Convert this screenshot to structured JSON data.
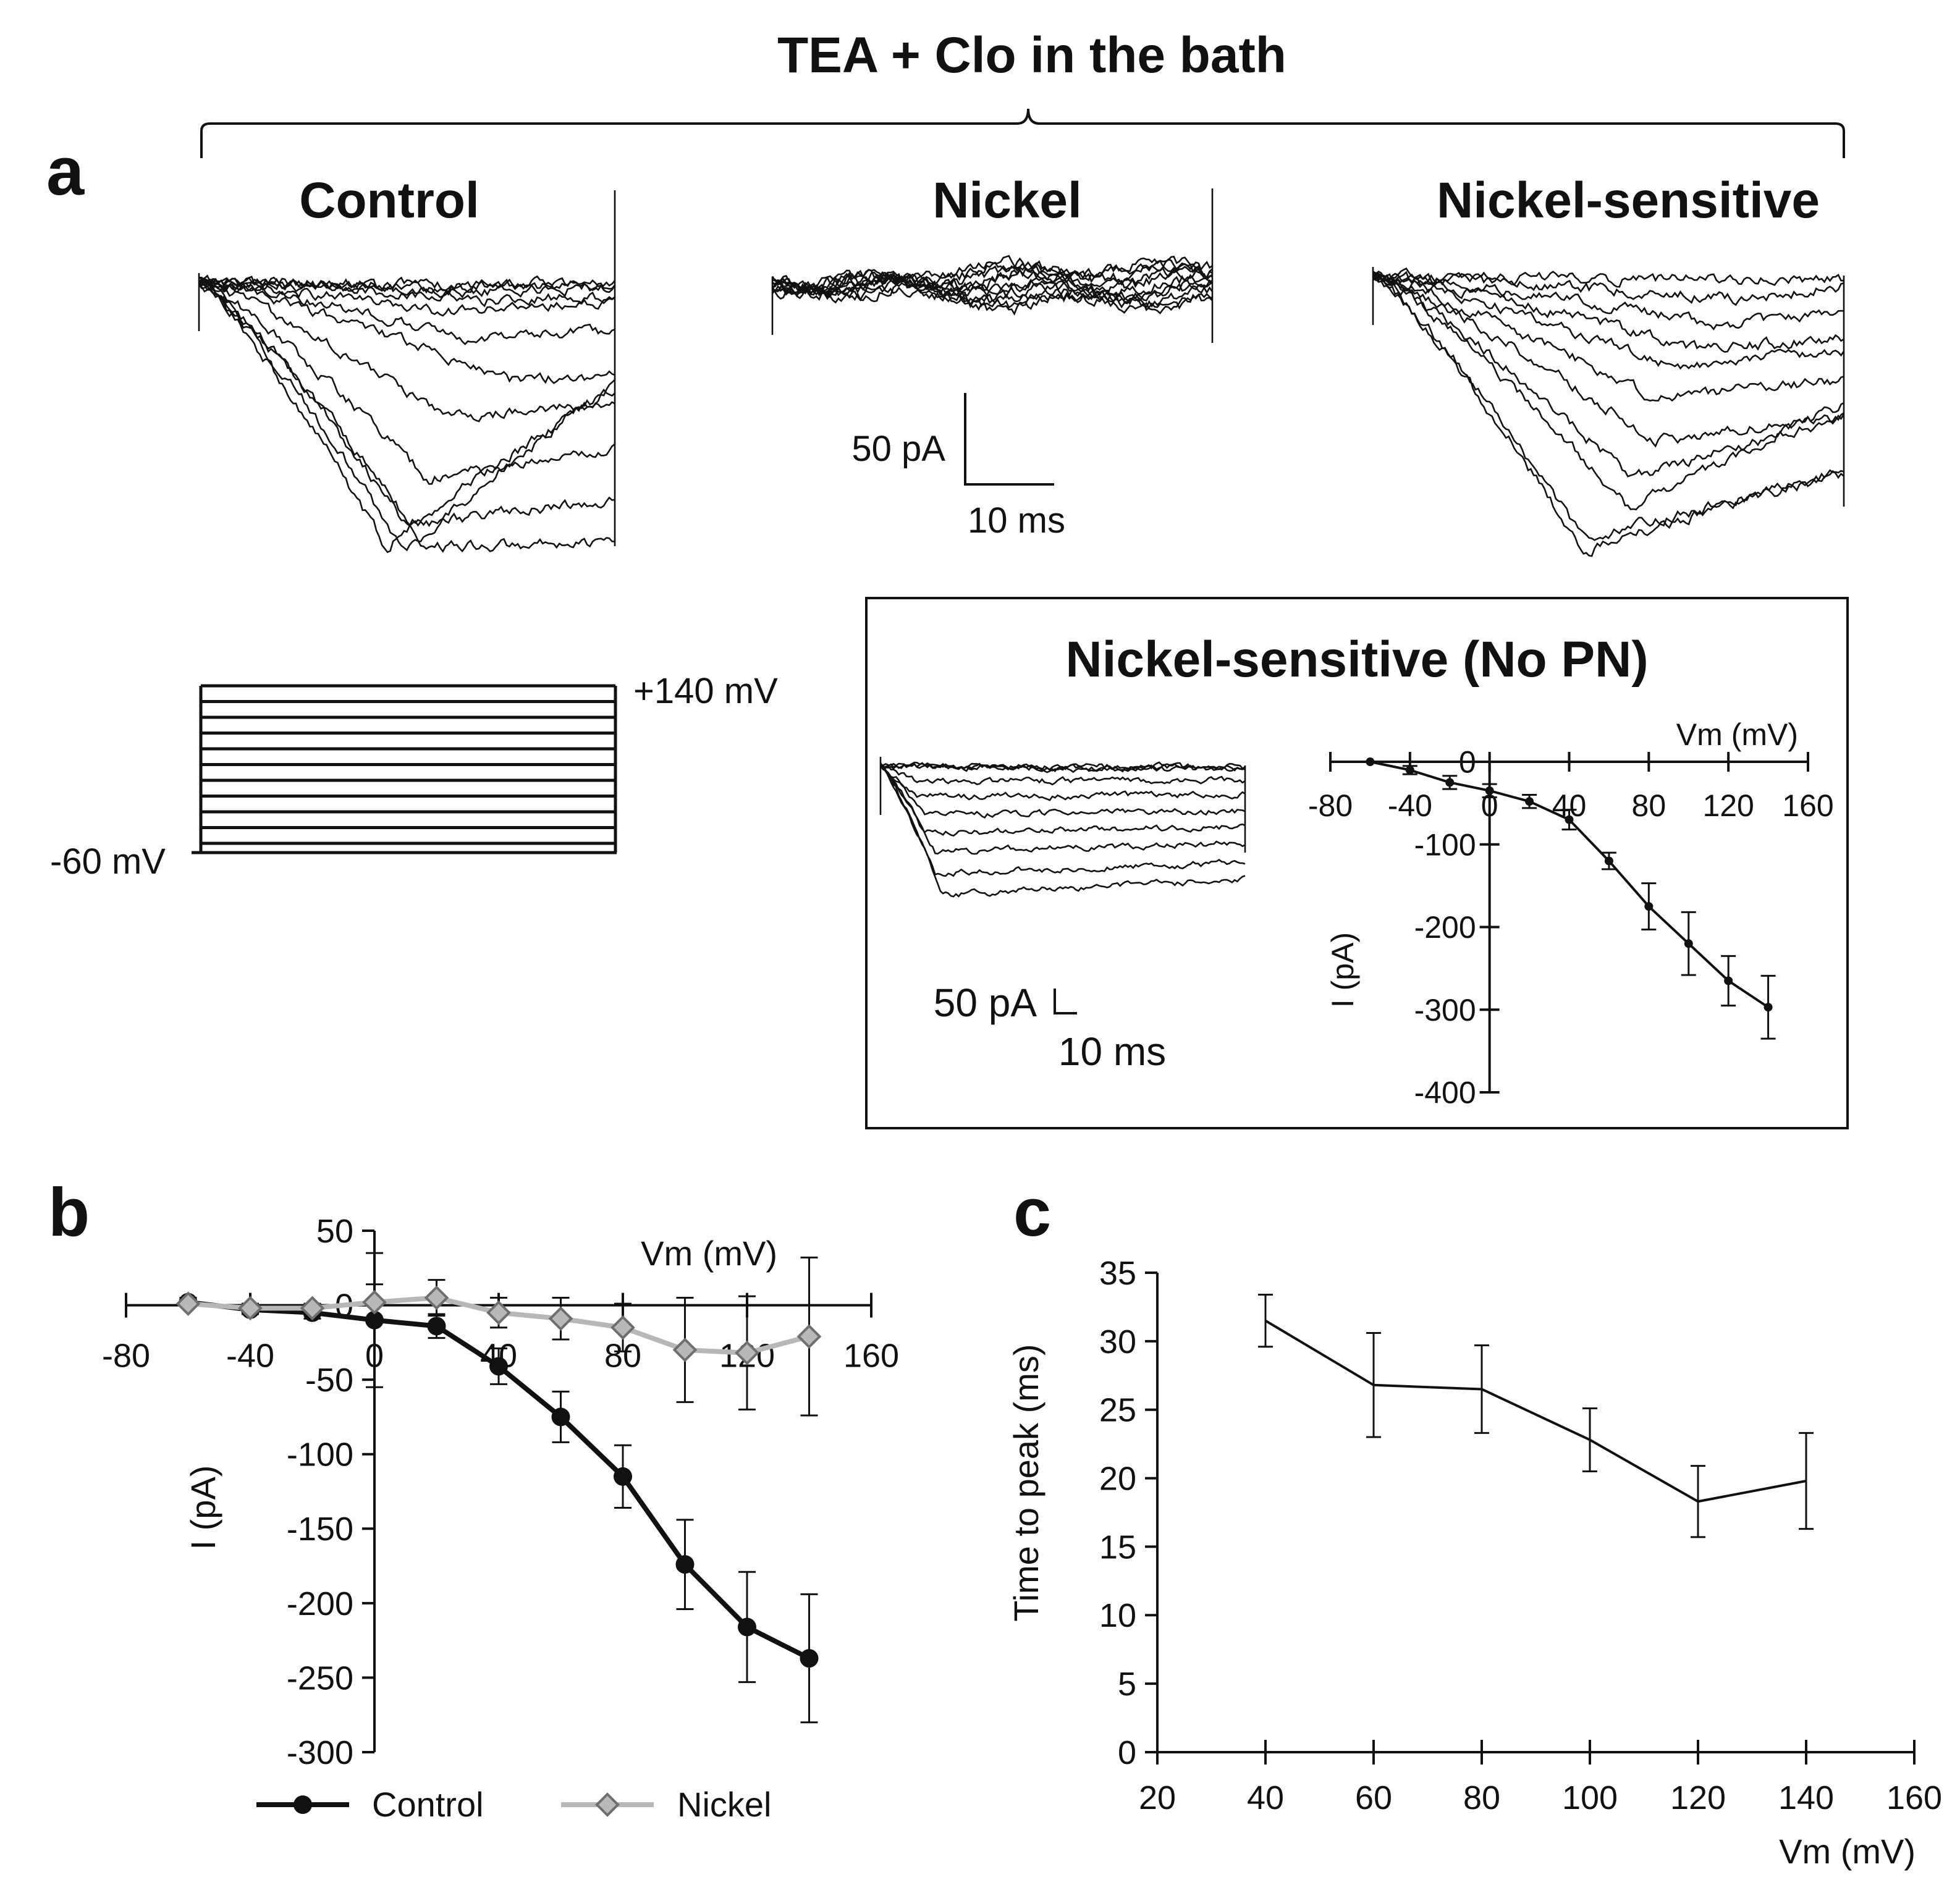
{
  "header": {
    "title": "TEA + Clo in the bath"
  },
  "panel_a": {
    "label": "a",
    "control_title": "Control",
    "nickel_title": "Nickel",
    "sensitive_title": "Nickel-sensitive",
    "scale_current": "50 pA",
    "scale_time": "10 ms",
    "protocol_top": "+140 mV",
    "protocol_hold": "-60 mV",
    "inset": {
      "title": "Nickel-sensitive (No PN)",
      "scale_current": "50 pA",
      "scale_time": "10 ms"
    }
  },
  "panel_b": {
    "label": "b"
  },
  "panel_c": {
    "label": "c"
  },
  "chart_data": [
    {
      "id": "inset_iv",
      "type": "line",
      "xlabel": "Vm (mV)",
      "ylabel": "I (pA)",
      "xlim": [
        -80,
        160
      ],
      "ylim": [
        -400,
        0
      ],
      "xticks": [
        -80,
        -40,
        0,
        40,
        80,
        120,
        160
      ],
      "yticks": [
        0,
        -100,
        -200,
        -300,
        -400
      ],
      "series": [
        {
          "name": "Nickel-sensitive",
          "color": "#111111",
          "x": [
            -60,
            -40,
            -20,
            0,
            20,
            40,
            60,
            80,
            100,
            120,
            140
          ],
          "y": [
            0,
            -10,
            -25,
            -35,
            -48,
            -70,
            -120,
            -175,
            -220,
            -265,
            -297
          ],
          "err": [
            0,
            5,
            8,
            8,
            8,
            12,
            10,
            28,
            38,
            30,
            38
          ]
        }
      ]
    },
    {
      "id": "b_iv",
      "type": "line",
      "xlabel": "Vm (mV)",
      "ylabel": "I (pA)",
      "xlim": [
        -80,
        160
      ],
      "ylim": [
        -300,
        50
      ],
      "xticks": [
        -80,
        -40,
        0,
        40,
        80,
        120,
        160
      ],
      "yticks": [
        50,
        0,
        -50,
        -100,
        -150,
        -200,
        -250,
        -300
      ],
      "legend": [
        "Control",
        "Nickel"
      ],
      "series": [
        {
          "name": "Control",
          "color": "#111111",
          "marker": "circle",
          "x": [
            -60,
            -40,
            -20,
            0,
            20,
            40,
            60,
            80,
            100,
            120,
            140
          ],
          "y": [
            2,
            -3,
            -5,
            -10,
            -14,
            -41,
            -75,
            -115,
            -174,
            -216,
            -237
          ],
          "err": [
            3,
            3,
            4,
            45,
            8,
            12,
            17,
            21,
            30,
            37,
            43
          ]
        },
        {
          "name": "Nickel",
          "color": "#b7b7b7",
          "marker": "diamond",
          "x": [
            -60,
            -40,
            -20,
            0,
            20,
            40,
            60,
            80,
            100,
            120,
            140
          ],
          "y": [
            1,
            -2,
            -2,
            2,
            5,
            -5,
            -9,
            -15,
            -30,
            -32,
            -21
          ],
          "err": [
            2,
            3,
            3,
            12,
            12,
            10,
            14,
            16,
            35,
            38,
            53
          ]
        }
      ]
    },
    {
      "id": "c_time_to_peak",
      "type": "line",
      "xlabel": "Vm (mV)",
      "ylabel": "Time to peak (ms)",
      "xlim": [
        20,
        160
      ],
      "ylim": [
        0,
        35
      ],
      "xticks": [
        20,
        40,
        60,
        80,
        100,
        120,
        140,
        160
      ],
      "yticks": [
        0,
        5,
        10,
        15,
        20,
        25,
        30,
        35
      ],
      "series": [
        {
          "name": "Time to peak",
          "color": "#111111",
          "x": [
            40,
            60,
            80,
            100,
            120,
            140
          ],
          "y": [
            31.5,
            26.8,
            26.5,
            22.8,
            18.3,
            19.8
          ],
          "err": [
            1.9,
            3.8,
            3.2,
            2.3,
            2.6,
            3.5
          ]
        }
      ]
    }
  ]
}
